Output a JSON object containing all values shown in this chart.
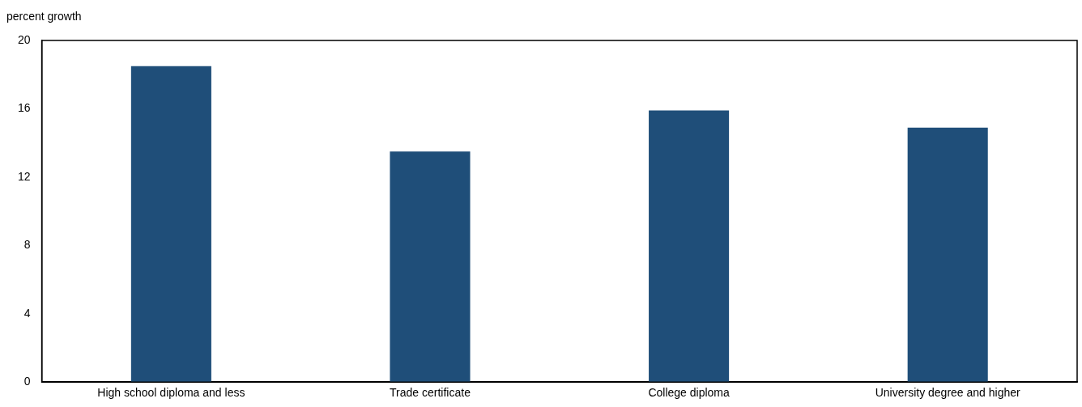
{
  "chart_data": {
    "type": "bar",
    "ylabel": "percent growth",
    "categories": [
      "High school diploma and less",
      "Trade certificate",
      "College diploma",
      "University degree and higher"
    ],
    "values": [
      18.5,
      13.5,
      15.9,
      14.9
    ],
    "color": "#1f4e79",
    "ylim": [
      0,
      20
    ],
    "yticks": [
      0,
      4,
      8,
      12,
      16,
      20
    ],
    "grid": false,
    "legend": false
  }
}
